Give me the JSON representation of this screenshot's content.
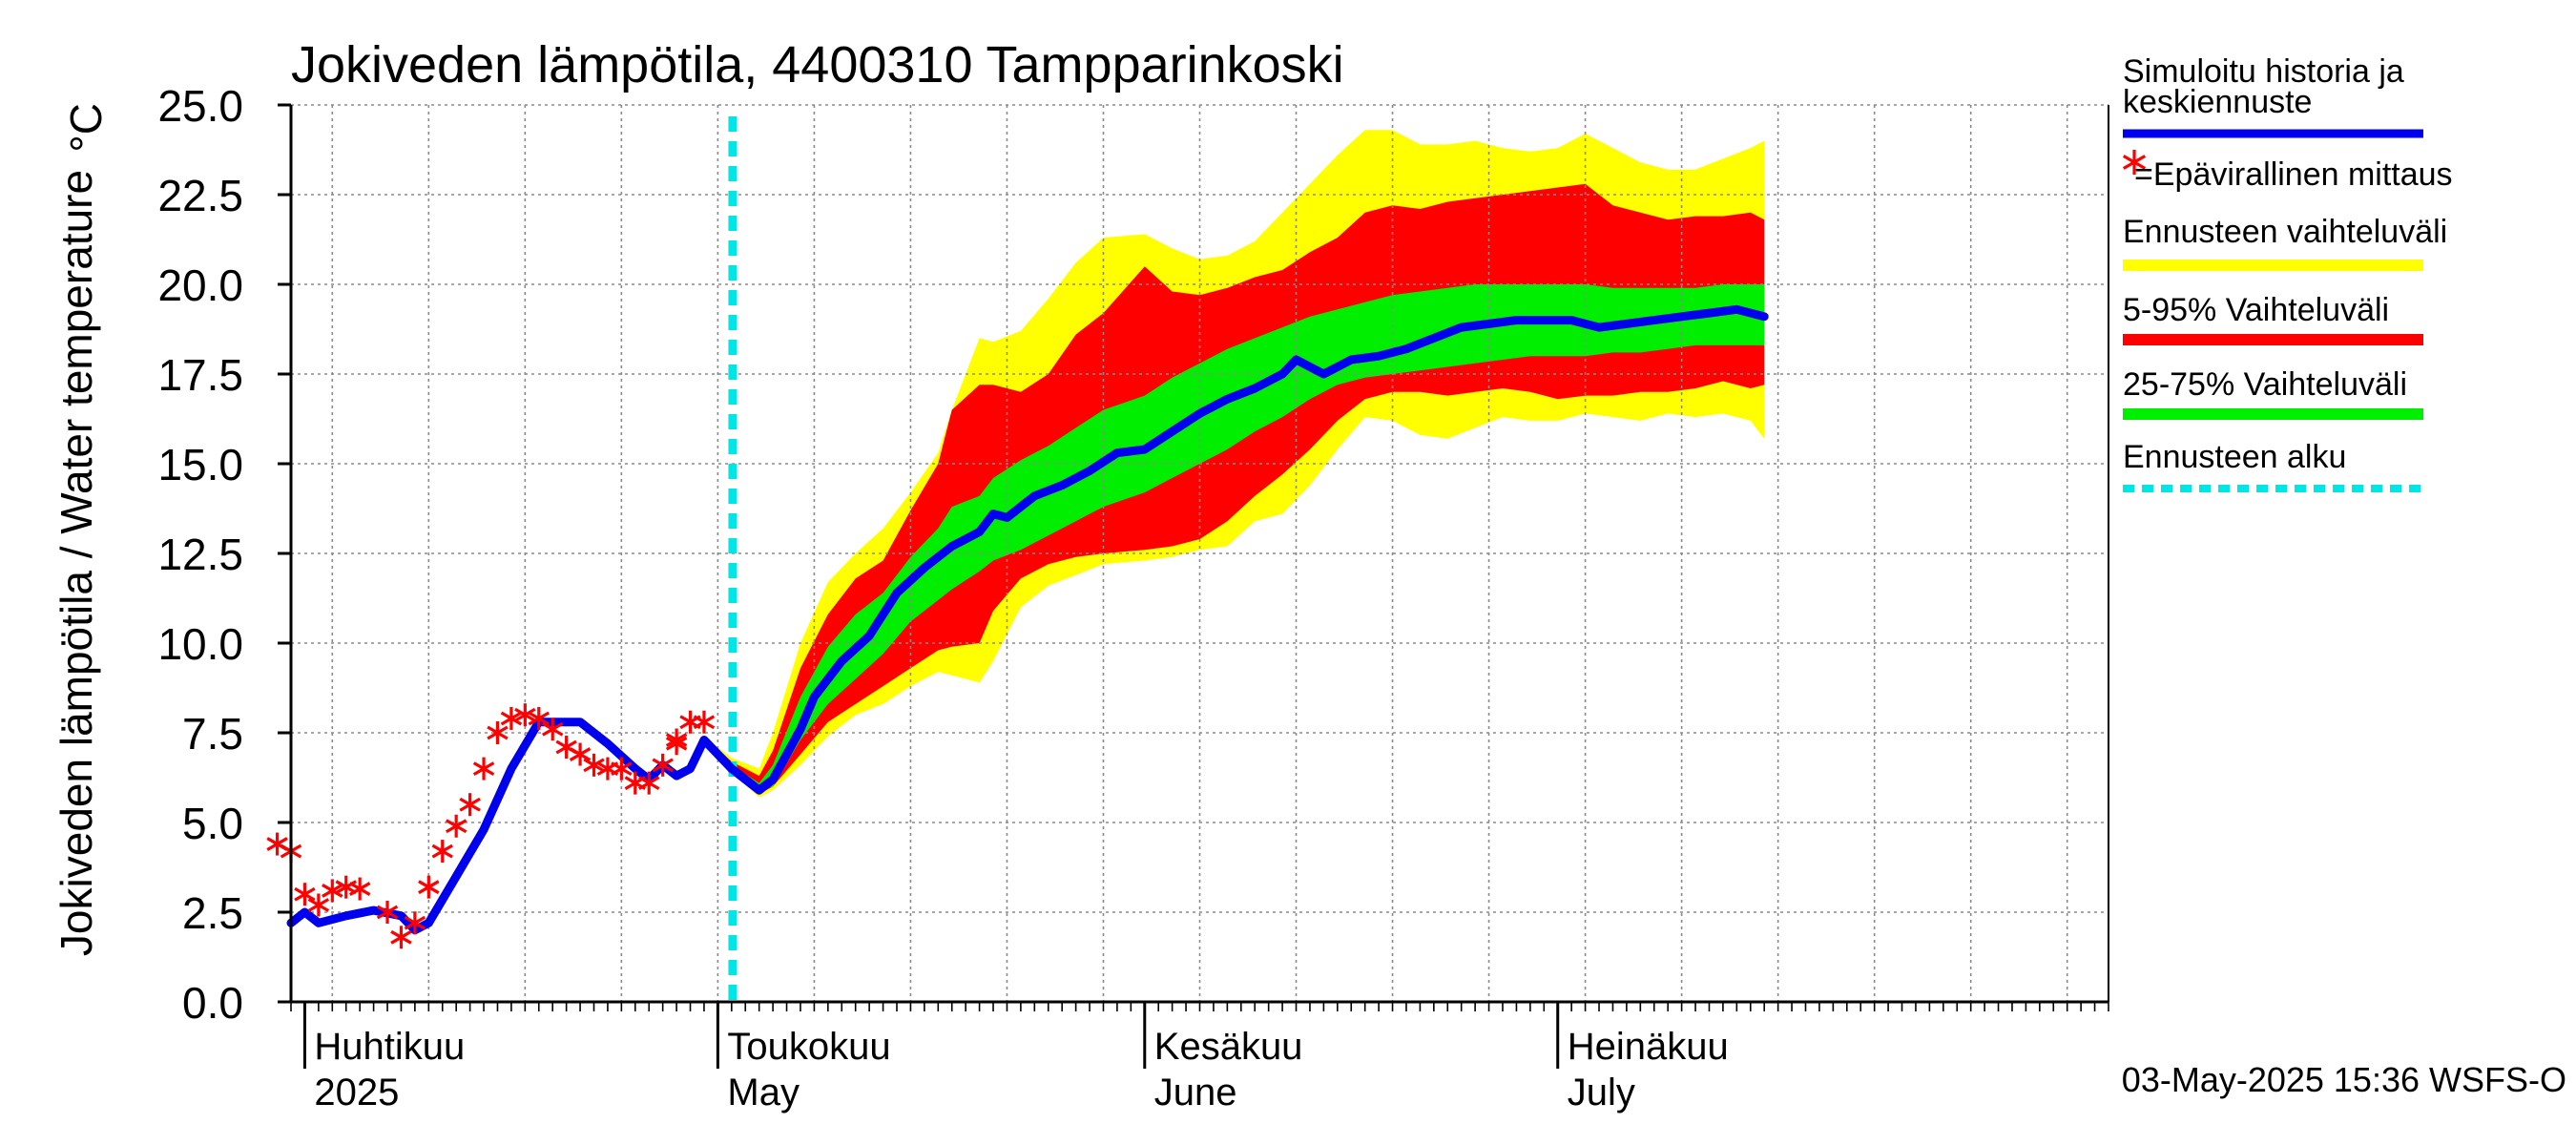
{
  "chart_data": {
    "type": "area",
    "title": "Jokiveden lämpötila, 4400310 Tampparinkoski",
    "unit": "°C",
    "ylabel": "Jokiveden lämpötila / Water temperature",
    "ylim": [
      0.0,
      25.0
    ],
    "y_ticks": [
      "0.0",
      "2.5",
      "5.0",
      "7.5",
      "10.0",
      "12.5",
      "15.0",
      "17.5",
      "20.0",
      "22.5",
      "25.0"
    ],
    "xlim": [
      "2025-03-31",
      "2025-08-10"
    ],
    "x_month_labels": [
      {
        "date": "2025-04-01",
        "fi": "Huhtikuu",
        "en": "2025"
      },
      {
        "date": "2025-05-01",
        "fi": "Toukokuu",
        "en": "May"
      },
      {
        "date": "2025-06-01",
        "fi": "Kesäkuu",
        "en": "June"
      },
      {
        "date": "2025-07-01",
        "fi": "Heinäkuu",
        "en": "July"
      }
    ],
    "grid": true,
    "legend_position": "right",
    "legend": [
      {
        "label": "Simuloitu historia ja keskiennuste",
        "color": "#0000ee",
        "style": "line"
      },
      {
        "label": "=Epävirallinen mittaus",
        "color": "#ff0000",
        "style": "marker"
      },
      {
        "label": "Ennusteen vaihteluväli",
        "color": "#ffff00",
        "style": "band"
      },
      {
        "label": "5-95% Vaihteluväli",
        "color": "#ff0000",
        "style": "band"
      },
      {
        "label": "25-75% Vaihteluväli",
        "color": "#00ee00",
        "style": "band"
      },
      {
        "label": "Ennusteen alku",
        "color": "#00e5e5",
        "style": "dashed"
      }
    ],
    "colors": {
      "simulated": "#0000ee",
      "observed": "#ff0000",
      "range_full": "#ffff00",
      "range_5_95": "#ff0000",
      "range_25_75": "#00ee00",
      "forecast_start": "#00e5e5"
    },
    "forecast_start": "2025-04-30",
    "footer": "03-May-2025 15:36 WSFS-O",
    "series": [
      {
        "name": "Simuloitu historia ja keskiennuste",
        "points": [
          [
            "2025-03-31",
            2.2
          ],
          [
            "2025-04-01",
            2.5
          ],
          [
            "2025-04-02",
            2.2
          ],
          [
            "2025-04-04",
            2.4
          ],
          [
            "2025-04-06",
            2.55
          ],
          [
            "2025-04-08",
            2.4
          ],
          [
            "2025-04-09",
            2.0
          ],
          [
            "2025-04-10",
            2.2
          ],
          [
            "2025-04-12",
            3.5
          ],
          [
            "2025-04-14",
            4.8
          ],
          [
            "2025-04-16",
            6.5
          ],
          [
            "2025-04-18",
            7.8
          ],
          [
            "2025-04-19",
            7.8
          ],
          [
            "2025-04-21",
            7.8
          ],
          [
            "2025-04-23",
            7.2
          ],
          [
            "2025-04-25",
            6.5
          ],
          [
            "2025-04-26",
            6.2
          ],
          [
            "2025-04-27",
            6.6
          ],
          [
            "2025-04-28",
            6.3
          ],
          [
            "2025-04-29",
            6.5
          ],
          [
            "2025-04-30",
            7.3
          ],
          [
            "2025-05-02",
            6.5
          ],
          [
            "2025-05-04",
            5.9
          ],
          [
            "2025-05-05",
            6.2
          ],
          [
            "2025-05-07",
            7.6
          ],
          [
            "2025-05-08",
            8.5
          ],
          [
            "2025-05-10",
            9.5
          ],
          [
            "2025-05-12",
            10.2
          ],
          [
            "2025-05-14",
            11.4
          ],
          [
            "2025-05-16",
            12.1
          ],
          [
            "2025-05-18",
            12.7
          ],
          [
            "2025-05-20",
            13.1
          ],
          [
            "2025-05-21",
            13.6
          ],
          [
            "2025-05-22",
            13.5
          ],
          [
            "2025-05-24",
            14.1
          ],
          [
            "2025-05-26",
            14.4
          ],
          [
            "2025-05-28",
            14.8
          ],
          [
            "2025-05-30",
            15.3
          ],
          [
            "2025-06-01",
            15.4
          ],
          [
            "2025-06-03",
            15.9
          ],
          [
            "2025-06-05",
            16.4
          ],
          [
            "2025-06-07",
            16.8
          ],
          [
            "2025-06-09",
            17.1
          ],
          [
            "2025-06-11",
            17.5
          ],
          [
            "2025-06-12",
            17.9
          ],
          [
            "2025-06-14",
            17.5
          ],
          [
            "2025-06-16",
            17.9
          ],
          [
            "2025-06-18",
            18.0
          ],
          [
            "2025-06-20",
            18.2
          ],
          [
            "2025-06-22",
            18.5
          ],
          [
            "2025-06-24",
            18.8
          ],
          [
            "2025-06-26",
            18.9
          ],
          [
            "2025-06-28",
            19.0
          ],
          [
            "2025-06-30",
            19.0
          ],
          [
            "2025-07-02",
            19.0
          ],
          [
            "2025-07-04",
            18.8
          ],
          [
            "2025-07-06",
            18.9
          ],
          [
            "2025-07-08",
            19.0
          ],
          [
            "2025-07-10",
            19.1
          ],
          [
            "2025-07-12",
            19.2
          ],
          [
            "2025-07-14",
            19.3
          ],
          [
            "2025-07-16",
            19.1
          ]
        ]
      },
      {
        "name": "=Epävirallinen mittaus",
        "points": [
          [
            "2025-03-30",
            4.4
          ],
          [
            "2025-03-31",
            4.2
          ],
          [
            "2025-04-01",
            3.0
          ],
          [
            "2025-04-02",
            2.7
          ],
          [
            "2025-04-03",
            3.1
          ],
          [
            "2025-04-04",
            3.2
          ],
          [
            "2025-04-05",
            3.15
          ],
          [
            "2025-04-07",
            2.5
          ],
          [
            "2025-04-08",
            1.8
          ],
          [
            "2025-04-09",
            2.2
          ],
          [
            "2025-04-10",
            3.2
          ],
          [
            "2025-04-11",
            4.2
          ],
          [
            "2025-04-12",
            4.9
          ],
          [
            "2025-04-13",
            5.5
          ],
          [
            "2025-04-14",
            6.5
          ],
          [
            "2025-04-15",
            7.5
          ],
          [
            "2025-04-16",
            7.9
          ],
          [
            "2025-04-17",
            8.0
          ],
          [
            "2025-04-18",
            7.9
          ],
          [
            "2025-04-19",
            7.6
          ],
          [
            "2025-04-20",
            7.1
          ],
          [
            "2025-04-21",
            6.9
          ],
          [
            "2025-04-22",
            6.6
          ],
          [
            "2025-04-23",
            6.5
          ],
          [
            "2025-04-24",
            6.5
          ],
          [
            "2025-04-25",
            6.1
          ],
          [
            "2025-04-26",
            6.1
          ],
          [
            "2025-04-27",
            6.6
          ],
          [
            "2025-04-28",
            7.3
          ],
          [
            "2025-04-28",
            7.2
          ],
          [
            "2025-04-29",
            7.8
          ],
          [
            "2025-04-30",
            7.8
          ]
        ]
      }
    ],
    "bands": [
      {
        "name": "Ennusteen vaihteluväli",
        "color": "#ffff00",
        "points": [
          [
            "2025-04-30",
            7.4,
            7.3
          ],
          [
            "2025-05-02",
            6.8,
            6.4
          ],
          [
            "2025-05-04",
            6.5,
            5.7
          ],
          [
            "2025-05-05",
            7.5,
            5.9
          ],
          [
            "2025-05-07",
            10.0,
            6.6
          ],
          [
            "2025-05-09",
            11.7,
            7.4
          ],
          [
            "2025-05-11",
            12.5,
            8.0
          ],
          [
            "2025-05-13",
            13.2,
            8.3
          ],
          [
            "2025-05-15",
            14.2,
            8.8
          ],
          [
            "2025-05-17",
            15.3,
            9.2
          ],
          [
            "2025-05-18",
            16.5,
            9.1
          ],
          [
            "2025-05-20",
            18.5,
            8.9
          ],
          [
            "2025-05-21",
            18.4,
            9.5
          ],
          [
            "2025-05-23",
            18.7,
            11.0
          ],
          [
            "2025-05-25",
            19.6,
            11.6
          ],
          [
            "2025-05-27",
            20.6,
            11.9
          ],
          [
            "2025-05-29",
            21.3,
            12.2
          ],
          [
            "2025-06-01",
            21.4,
            12.3
          ],
          [
            "2025-06-03",
            21.0,
            12.4
          ],
          [
            "2025-06-05",
            20.7,
            12.6
          ],
          [
            "2025-06-07",
            20.8,
            12.7
          ],
          [
            "2025-06-09",
            21.2,
            13.4
          ],
          [
            "2025-06-11",
            22.0,
            13.6
          ],
          [
            "2025-06-13",
            22.8,
            14.4
          ],
          [
            "2025-06-15",
            23.6,
            15.4
          ],
          [
            "2025-06-17",
            24.3,
            16.3
          ],
          [
            "2025-06-19",
            24.3,
            16.2
          ],
          [
            "2025-06-21",
            23.9,
            15.8
          ],
          [
            "2025-06-23",
            23.9,
            15.7
          ],
          [
            "2025-06-25",
            24.0,
            16.0
          ],
          [
            "2025-06-27",
            23.8,
            16.3
          ],
          [
            "2025-06-29",
            23.7,
            16.2
          ],
          [
            "2025-07-01",
            23.8,
            16.2
          ],
          [
            "2025-07-03",
            24.2,
            16.4
          ],
          [
            "2025-07-05",
            23.8,
            16.3
          ],
          [
            "2025-07-07",
            23.4,
            16.2
          ],
          [
            "2025-07-09",
            23.2,
            16.4
          ],
          [
            "2025-07-11",
            23.2,
            16.3
          ],
          [
            "2025-07-13",
            23.5,
            16.4
          ],
          [
            "2025-07-15",
            23.8,
            16.2
          ],
          [
            "2025-07-16",
            24.0,
            15.7
          ]
        ]
      },
      {
        "name": "5-95% Vaihteluväli",
        "color": "#ff0000",
        "points": [
          [
            "2025-04-30",
            7.4,
            7.3
          ],
          [
            "2025-05-02",
            6.7,
            6.5
          ],
          [
            "2025-05-04",
            6.3,
            5.8
          ],
          [
            "2025-05-05",
            7.0,
            6.0
          ],
          [
            "2025-05-07",
            9.3,
            6.9
          ],
          [
            "2025-05-09",
            10.8,
            7.8
          ],
          [
            "2025-05-11",
            11.8,
            8.3
          ],
          [
            "2025-05-13",
            12.3,
            8.8
          ],
          [
            "2025-05-15",
            13.7,
            9.3
          ],
          [
            "2025-05-17",
            15.0,
            9.8
          ],
          [
            "2025-05-18",
            16.5,
            9.9
          ],
          [
            "2025-05-20",
            17.2,
            10.0
          ],
          [
            "2025-05-21",
            17.2,
            10.9
          ],
          [
            "2025-05-23",
            17.0,
            11.8
          ],
          [
            "2025-05-25",
            17.5,
            12.2
          ],
          [
            "2025-05-27",
            18.6,
            12.4
          ],
          [
            "2025-05-29",
            19.2,
            12.5
          ],
          [
            "2025-06-01",
            20.5,
            12.6
          ],
          [
            "2025-06-03",
            19.8,
            12.7
          ],
          [
            "2025-06-05",
            19.7,
            12.9
          ],
          [
            "2025-06-07",
            19.9,
            13.4
          ],
          [
            "2025-06-09",
            20.2,
            14.1
          ],
          [
            "2025-06-11",
            20.4,
            14.7
          ],
          [
            "2025-06-13",
            20.9,
            15.4
          ],
          [
            "2025-06-15",
            21.3,
            16.2
          ],
          [
            "2025-06-17",
            22.0,
            16.8
          ],
          [
            "2025-06-19",
            22.2,
            17.0
          ],
          [
            "2025-06-21",
            22.1,
            17.0
          ],
          [
            "2025-06-23",
            22.3,
            16.9
          ],
          [
            "2025-06-25",
            22.4,
            17.0
          ],
          [
            "2025-06-27",
            22.5,
            17.1
          ],
          [
            "2025-06-29",
            22.6,
            17.0
          ],
          [
            "2025-07-01",
            22.7,
            16.8
          ],
          [
            "2025-07-03",
            22.8,
            16.9
          ],
          [
            "2025-07-05",
            22.2,
            16.9
          ],
          [
            "2025-07-07",
            22.0,
            17.0
          ],
          [
            "2025-07-09",
            21.8,
            17.0
          ],
          [
            "2025-07-11",
            21.9,
            17.1
          ],
          [
            "2025-07-13",
            21.9,
            17.3
          ],
          [
            "2025-07-15",
            22.0,
            17.1
          ],
          [
            "2025-07-16",
            21.8,
            17.2
          ]
        ]
      },
      {
        "name": "25-75% Vaihteluväli",
        "color": "#00ee00",
        "points": [
          [
            "2025-04-30",
            7.4,
            7.3
          ],
          [
            "2025-05-02",
            6.6,
            6.5
          ],
          [
            "2025-05-04",
            6.1,
            5.9
          ],
          [
            "2025-05-05",
            6.6,
            6.0
          ],
          [
            "2025-05-07",
            8.5,
            7.3
          ],
          [
            "2025-05-09",
            9.9,
            8.3
          ],
          [
            "2025-05-11",
            10.8,
            9.0
          ],
          [
            "2025-05-13",
            11.4,
            9.7
          ],
          [
            "2025-05-15",
            12.4,
            10.6
          ],
          [
            "2025-05-17",
            13.2,
            11.2
          ],
          [
            "2025-05-18",
            13.8,
            11.5
          ],
          [
            "2025-05-20",
            14.1,
            12.0
          ],
          [
            "2025-05-21",
            14.6,
            12.3
          ],
          [
            "2025-05-23",
            15.1,
            12.6
          ],
          [
            "2025-05-25",
            15.5,
            13.0
          ],
          [
            "2025-05-27",
            16.0,
            13.4
          ],
          [
            "2025-05-29",
            16.5,
            13.8
          ],
          [
            "2025-06-01",
            16.9,
            14.2
          ],
          [
            "2025-06-03",
            17.4,
            14.6
          ],
          [
            "2025-06-05",
            17.8,
            15.0
          ],
          [
            "2025-06-07",
            18.2,
            15.4
          ],
          [
            "2025-06-09",
            18.5,
            15.9
          ],
          [
            "2025-06-11",
            18.8,
            16.3
          ],
          [
            "2025-06-13",
            19.1,
            16.8
          ],
          [
            "2025-06-15",
            19.3,
            17.2
          ],
          [
            "2025-06-17",
            19.5,
            17.4
          ],
          [
            "2025-06-19",
            19.7,
            17.5
          ],
          [
            "2025-06-21",
            19.8,
            17.6
          ],
          [
            "2025-06-23",
            19.9,
            17.7
          ],
          [
            "2025-06-25",
            20.0,
            17.8
          ],
          [
            "2025-06-27",
            20.0,
            17.9
          ],
          [
            "2025-06-29",
            20.0,
            18.0
          ],
          [
            "2025-07-01",
            20.0,
            18.0
          ],
          [
            "2025-07-03",
            20.0,
            18.0
          ],
          [
            "2025-07-05",
            19.9,
            18.1
          ],
          [
            "2025-07-07",
            19.9,
            18.1
          ],
          [
            "2025-07-09",
            19.9,
            18.2
          ],
          [
            "2025-07-11",
            19.9,
            18.3
          ],
          [
            "2025-07-13",
            20.0,
            18.3
          ],
          [
            "2025-07-15",
            20.0,
            18.3
          ],
          [
            "2025-07-16",
            20.0,
            18.3
          ]
        ]
      }
    ]
  }
}
